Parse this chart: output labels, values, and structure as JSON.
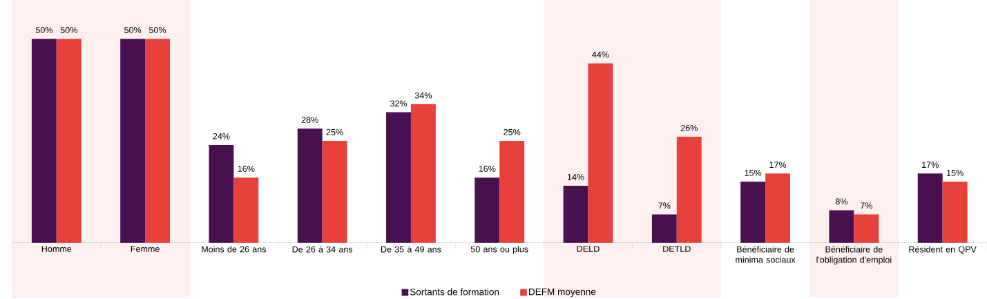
{
  "chart_data": {
    "type": "bar",
    "categories": [
      "Homme",
      "Femme",
      "Moins de 26 ans",
      "De 26 à 34 ans",
      "De 35 à 49 ans",
      "50 ans ou plus",
      "DELD",
      "DETLD",
      "Bénéficiaire de minima sociaux",
      "Bénéficiaire de l'obligation d'emploi",
      "Résident en QPV"
    ],
    "series": [
      {
        "name": "Sortants de formation",
        "color": "#4a1150",
        "values": [
          50,
          50,
          24,
          28,
          32,
          16,
          14,
          7,
          15,
          8,
          17
        ],
        "value_labels": [
          "50%",
          "50%",
          "24%",
          "28%",
          "32%",
          "16%",
          "14%",
          "7%",
          "15%",
          "8%",
          "17%"
        ]
      },
      {
        "name": "DEFM moyenne",
        "color": "#e8413c",
        "values": [
          50,
          50,
          16,
          25,
          34,
          25,
          44,
          26,
          17,
          7,
          15
        ],
        "value_labels": [
          "50%",
          "50%",
          "16%",
          "25%",
          "34%",
          "25%",
          "44%",
          "26%",
          "17%",
          "7%",
          "15%"
        ]
      }
    ],
    "bands": [
      {
        "axis": "x",
        "from": "Homme",
        "to": "Femme",
        "color": "#fdf0ef"
      },
      {
        "axis": "x",
        "from": "DELD",
        "to": "DETLD",
        "color": "#fdf0ef"
      },
      {
        "axis": "x",
        "from": "Bénéficiaire de l'obligation d'emploi",
        "to": "Bénéficiaire de l'obligation d'emploi",
        "color": "#fdf0ef"
      }
    ],
    "legend": "bottom"
  }
}
